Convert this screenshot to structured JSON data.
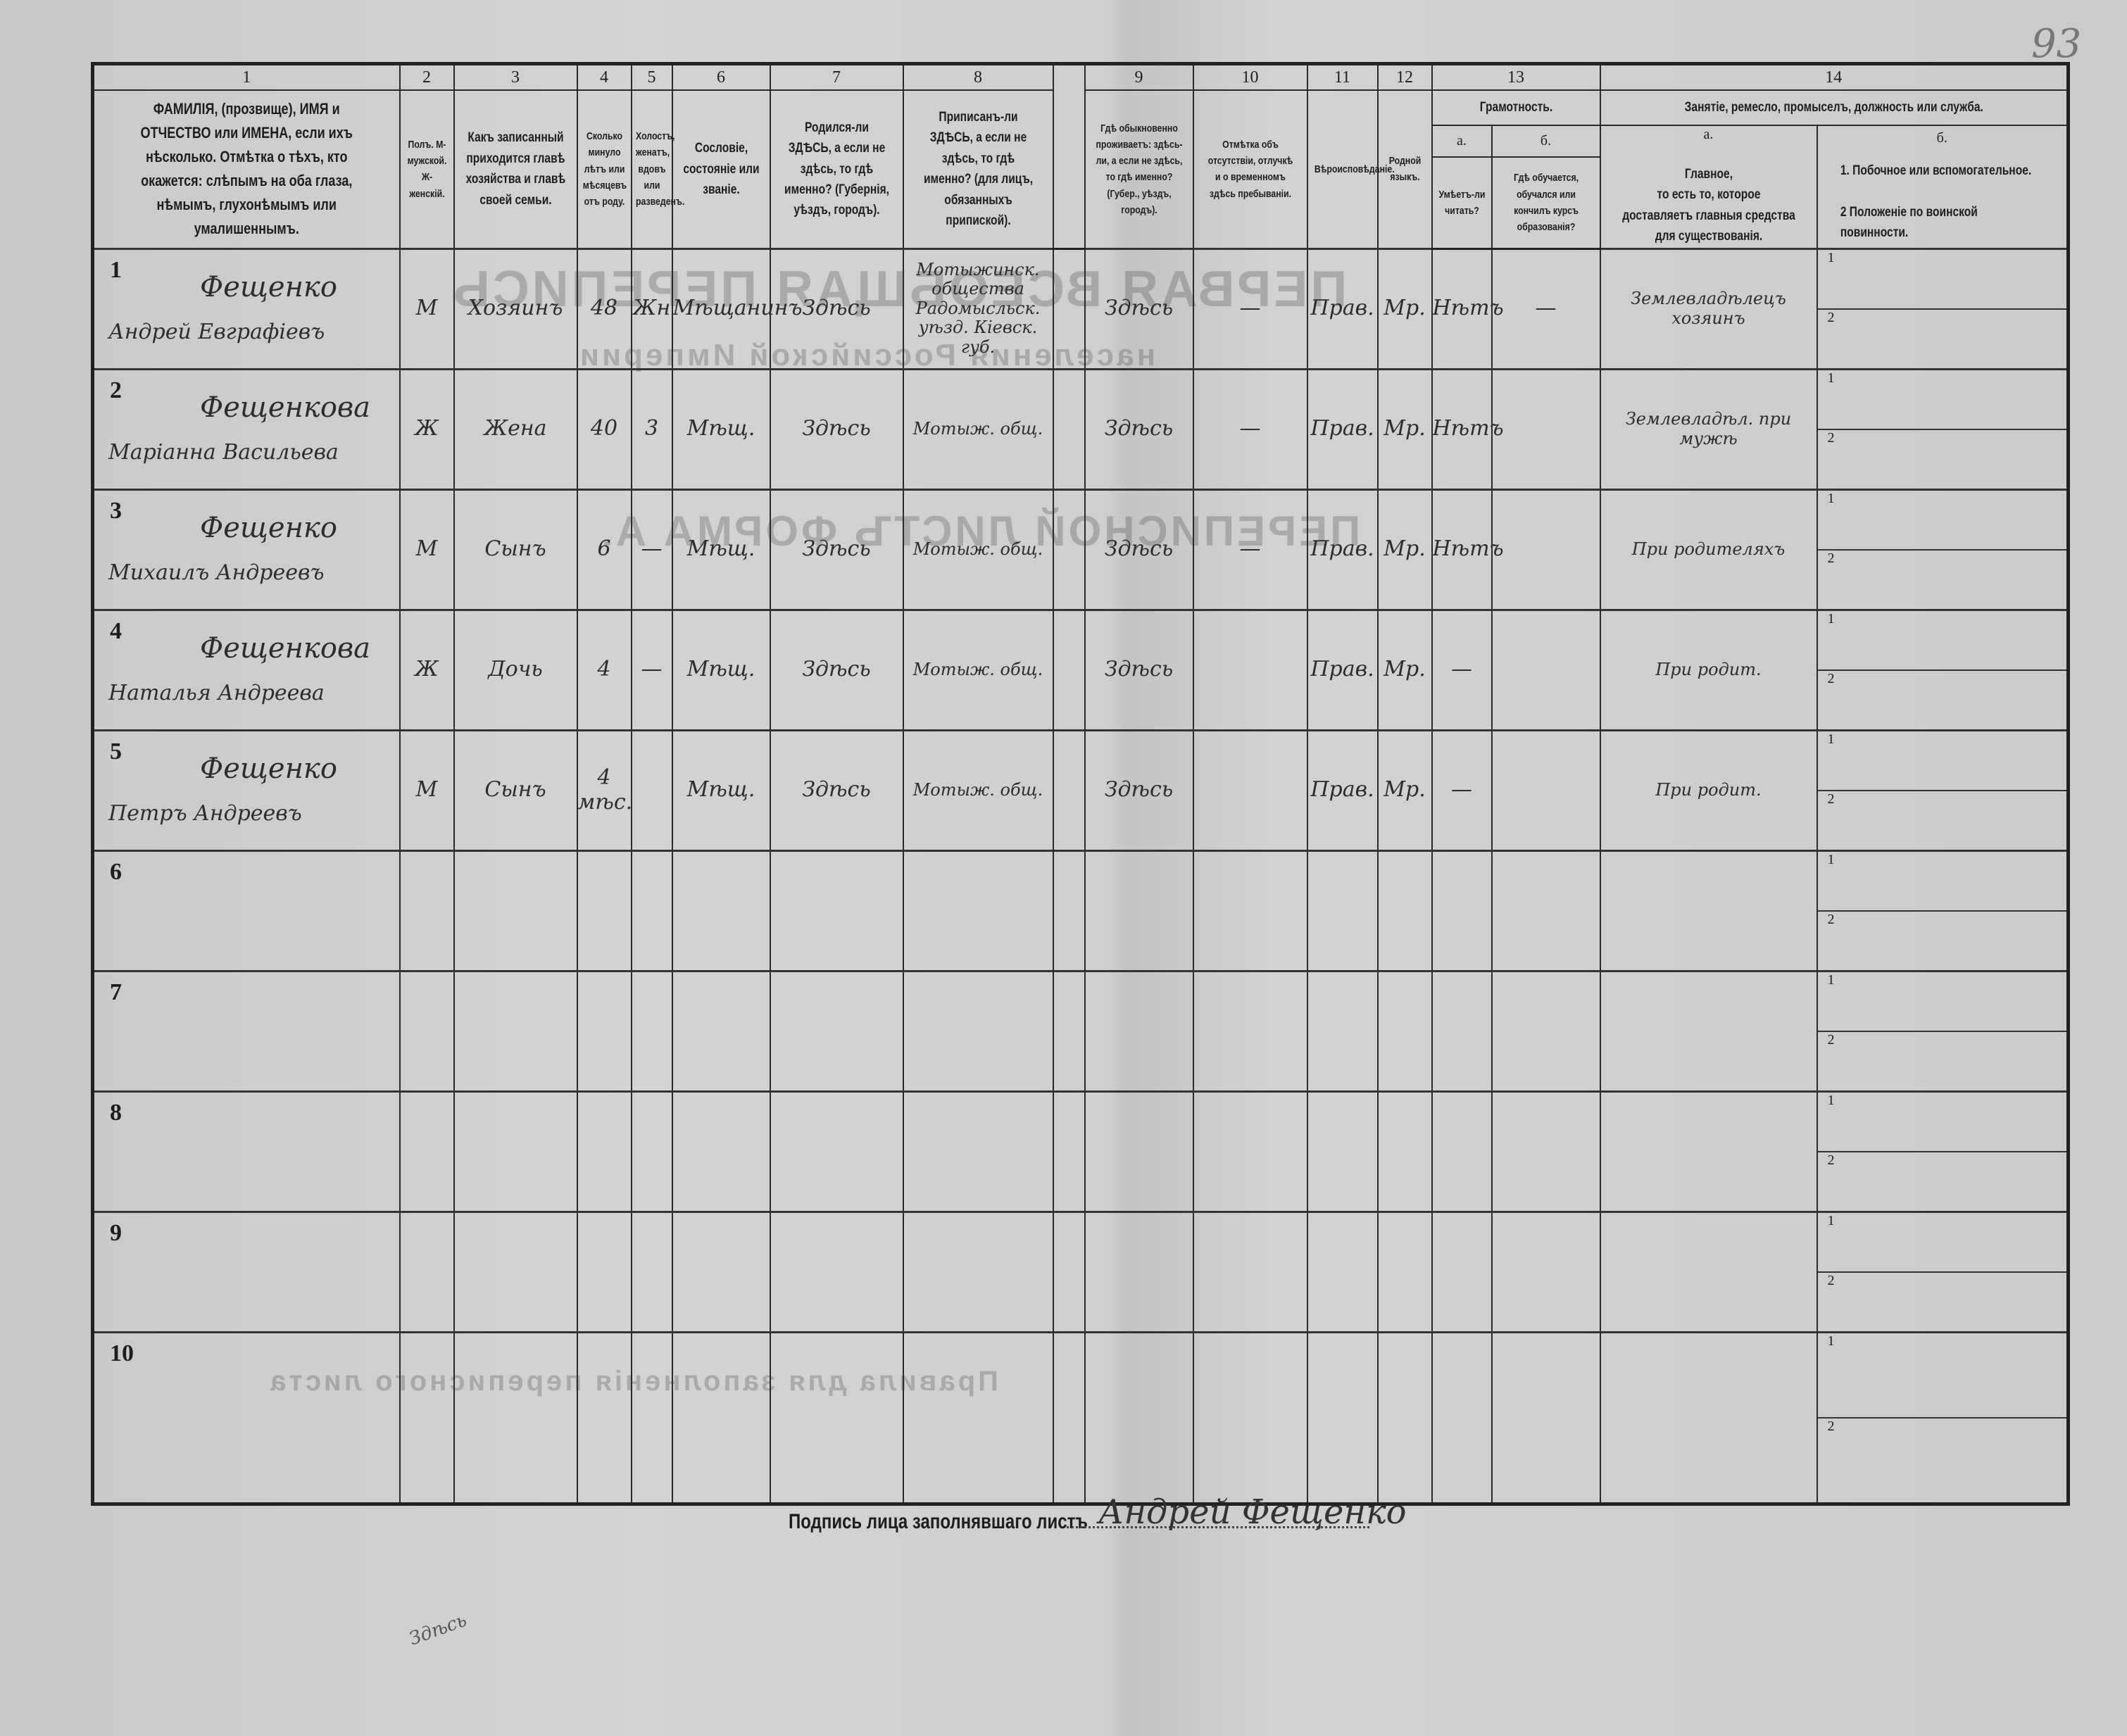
{
  "page_number": "93",
  "show_through": {
    "title": "ПЕРВАЯ ВСЕОБЩАЯ ПЕРЕПИСЬ",
    "subtitle": "населения Российской Империи",
    "form": "ПЕРЕПИСНОЙ ЛИСТЪ ФОРМА А.",
    "rules": "Правила для заполненія переписного листа"
  },
  "columns": {
    "numbers": [
      "1",
      "2",
      "3",
      "4",
      "5",
      "6",
      "7",
      "8",
      "9",
      "10",
      "11",
      "12",
      "13",
      "14"
    ],
    "c1": "ФАМИЛІЯ, (прозвище), ИМЯ и ОТЧЕСТВО или ИМЕНА, если ихъ нѣсколько. Отмѣтка о тѣхъ, кто окажется: слѣпымъ на оба глаза, нѣмымъ, глухонѣмымъ или умалишеннымъ.",
    "c2": "Полъ. М-мужской. Ж-женскій.",
    "c3": "Какъ записанный приходится главѣ хозяйства и главѣ своей семьи.",
    "c4": "Сколько минуло лѣтъ или мѣсяцевъ отъ роду.",
    "c5": "Холостъ, женатъ, вдовъ или разведенъ.",
    "c6": "Сословіе, состояніе или званіе.",
    "c7": "Родился-ли ЗДѢСЬ, а если не здѣсь, то гдѣ именно? (Губернія, уѣздъ, городъ).",
    "c8": "Приписанъ-ли ЗДѢСЬ, а если не здѣсь, то гдѣ именно? (для лицъ, обязанныхъ припиской).",
    "c9": "Гдѣ обыкновенно проживаетъ: здѣсь-ли, а если не здѣсь, то гдѣ именно? (Губер., уѣздъ, городъ).",
    "c10": "Отмѣтка объ отсутствіи, отлучкѣ и о временномъ здѣсь пребываніи.",
    "c11": "Вѣроисповѣданіе.",
    "c12": "Родной языкъ.",
    "c13": "Грамотность.",
    "c13a_letter": "а.",
    "c13a": "Умѣетъ-ли читать?",
    "c13b_letter": "б.",
    "c13b": "Гдѣ обучается, обучался или кончилъ курсъ образованія?",
    "c14": "Занятіе, ремесло, промыселъ, должность или служба.",
    "c14a_letter": "а.",
    "c14a_title": "Главное,",
    "c14a": "то есть то, которое доставляетъ главныя средства для существованія.",
    "c14b_letter": "б.",
    "c14b_1": "1. Побочное или вспомогательное.",
    "c14b_2": "2 Положеніе по воинской повинности."
  },
  "rows": [
    {
      "n": "1",
      "surname": "Фещенко",
      "given": "Андрей Евграфіевъ",
      "sex": "М",
      "relation": "Хозяинъ",
      "age": "48",
      "marital": "Жн",
      "estate": "Мѣщанинъ",
      "born": "Здѣсь",
      "registered": "Мотыжинск. общества Радомысльск. уѣзд. Кіевск. губ.",
      "residence": "Здѣсь",
      "absence": "—",
      "religion": "Прав.",
      "language": "Мр.",
      "reads": "Нѣтъ",
      "school": "—",
      "occupation": "Землевладѣлецъ хозяинъ",
      "sub1": "1",
      "sub2": "2"
    },
    {
      "n": "2",
      "surname": "Фещенкова",
      "given": "Маріанна Васильева",
      "sex": "Ж",
      "relation": "Жена",
      "age": "40",
      "marital": "3",
      "estate": "Мѣщ.",
      "born": "Здѣсь",
      "registered": "Мотыж. общ.",
      "residence": "Здѣсь",
      "absence": "—",
      "religion": "Прав.",
      "language": "Мр.",
      "reads": "Нѣтъ",
      "school": "",
      "occupation": "Землевладѣл. при мужѣ",
      "sub1": "1",
      "sub2": "2"
    },
    {
      "n": "3",
      "surname": "Фещенко",
      "given": "Михаилъ Андреевъ",
      "sex": "М",
      "relation": "Сынъ",
      "age": "6",
      "marital": "—",
      "estate": "Мѣщ.",
      "born": "Здѣсь",
      "registered": "Мотыж. общ.",
      "residence": "Здѣсь",
      "absence": "—",
      "religion": "Прав.",
      "language": "Мр.",
      "reads": "Нѣтъ",
      "school": "",
      "occupation": "При родителяхъ",
      "sub1": "1",
      "sub2": "2"
    },
    {
      "n": "4",
      "surname": "Фещенкова",
      "given": "Наталья Андреева",
      "sex": "Ж",
      "relation": "Дочь",
      "age": "4",
      "marital": "—",
      "estate": "Мѣщ.",
      "born": "Здѣсь",
      "registered": "Мотыж. общ.",
      "residence": "Здѣсь",
      "absence": "",
      "religion": "Прав.",
      "language": "Мр.",
      "reads": "—",
      "school": "",
      "occupation": "При родит.",
      "sub1": "1",
      "sub2": "2"
    },
    {
      "n": "5",
      "surname": "Фещенко",
      "given": "Петръ Андреевъ",
      "sex": "М",
      "relation": "Сынъ",
      "age": "4 мѣс.",
      "marital": "",
      "estate": "Мѣщ.",
      "born": "Здѣсь",
      "registered": "Мотыж. общ.",
      "residence": "Здѣсь",
      "absence": "",
      "religion": "Прав.",
      "language": "Мр.",
      "reads": "—",
      "school": "",
      "occupation": "При родит.",
      "sub1": "1",
      "sub2": "2"
    },
    {
      "n": "6",
      "surname": "",
      "given": "",
      "sex": "",
      "relation": "",
      "age": "",
      "marital": "",
      "estate": "",
      "born": "",
      "registered": "",
      "residence": "",
      "absence": "",
      "religion": "",
      "language": "",
      "reads": "",
      "school": "",
      "occupation": "",
      "sub1": "1",
      "sub2": "2"
    },
    {
      "n": "7",
      "surname": "",
      "given": "",
      "sex": "",
      "relation": "",
      "age": "",
      "marital": "",
      "estate": "",
      "born": "",
      "registered": "",
      "residence": "",
      "absence": "",
      "religion": "",
      "language": "",
      "reads": "",
      "school": "",
      "occupation": "",
      "sub1": "1",
      "sub2": "2"
    },
    {
      "n": "8",
      "surname": "",
      "given": "",
      "sex": "",
      "relation": "",
      "age": "",
      "marital": "",
      "estate": "",
      "born": "",
      "registered": "",
      "residence": "",
      "absence": "",
      "religion": "",
      "language": "",
      "reads": "",
      "school": "",
      "occupation": "",
      "sub1": "1",
      "sub2": "2"
    },
    {
      "n": "9",
      "surname": "",
      "given": "",
      "sex": "",
      "relation": "",
      "age": "",
      "marital": "",
      "estate": "",
      "born": "",
      "registered": "",
      "residence": "",
      "absence": "",
      "religion": "",
      "language": "",
      "reads": "",
      "school": "",
      "occupation": "",
      "sub1": "1",
      "sub2": "2"
    },
    {
      "n": "10",
      "surname": "",
      "given": "",
      "sex": "",
      "relation": "",
      "age": "",
      "marital": "",
      "estate": "",
      "born": "",
      "registered": "",
      "residence": "",
      "absence": "",
      "religion": "",
      "language": "",
      "reads": "",
      "school": "",
      "occupation": "",
      "sub1": "1",
      "sub2": "2"
    }
  ],
  "signature": {
    "label": "Подпись лица заполнявшаго листъ",
    "value": "Андрей Фещенко"
  },
  "margin_note": "Здѣсь"
}
